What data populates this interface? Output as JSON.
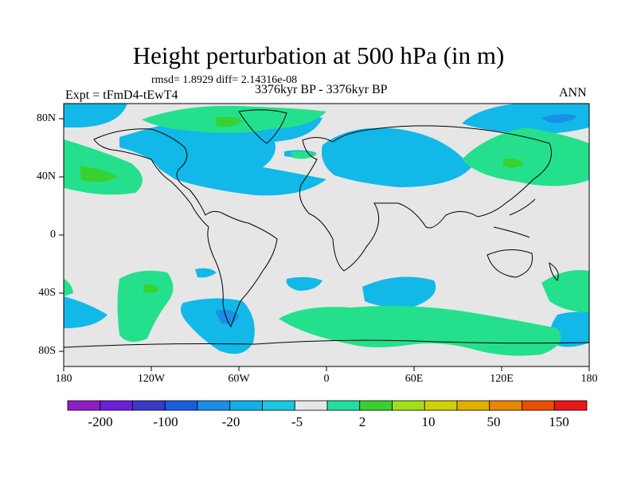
{
  "title": "Height perturbation at 500 hPa (in m)",
  "stats": "rmsd= 1.8929 diff= 2.14316e-08",
  "expt": "Expt = tFmD4-tEwT4",
  "period": "3376kyr BP - 3376kyr BP",
  "season": "ANN",
  "axes": {
    "lon_ticks": [
      "180",
      "120W",
      "60W",
      "0",
      "60E",
      "120E",
      "180"
    ],
    "lat_ticks": [
      "80N",
      "40N",
      "0",
      "40S",
      "80S"
    ]
  },
  "colorbar": {
    "colors": [
      "#8e1ec8",
      "#6a20d8",
      "#3a3ac8",
      "#1a5ee0",
      "#1a8ee8",
      "#12b0e8",
      "#18c8e0",
      "#e6e6e6",
      "#20e0a0",
      "#3ad030",
      "#a0e018",
      "#d0d008",
      "#e0b000",
      "#e88800",
      "#e85000",
      "#e81818"
    ],
    "labels": [
      "-200",
      "-100",
      "-20",
      "-5",
      "2",
      "10",
      "50",
      "150"
    ]
  },
  "field_colors": {
    "background": "#e6e6e6",
    "negative": "#12b8e8",
    "positive": "#24e08c",
    "strong_positive": "#3ad030",
    "strong_negative": "#1a8ee8"
  }
}
